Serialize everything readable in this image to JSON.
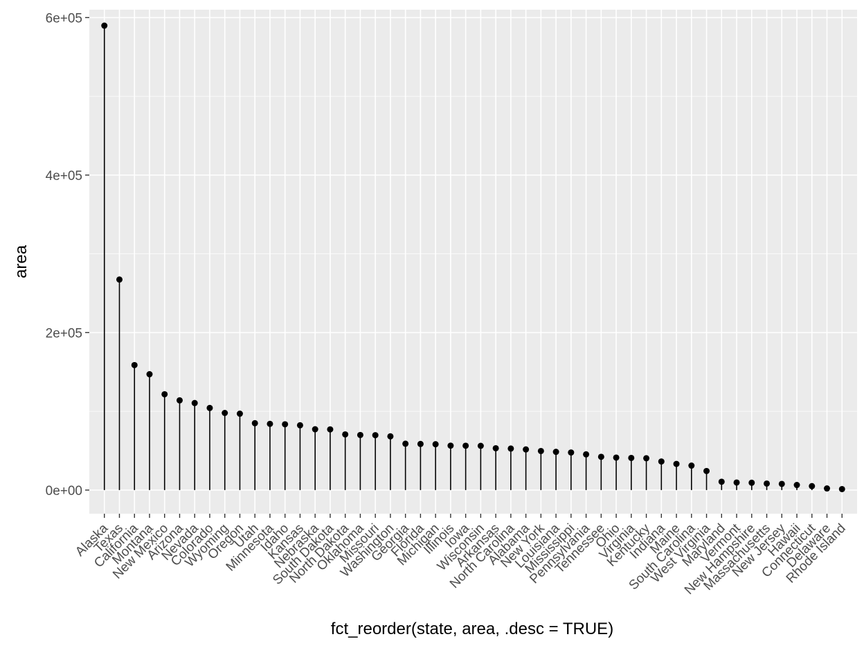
{
  "chart_data": {
    "type": "lollipop",
    "xlabel": "fct_reorder(state, area, .desc = TRUE)",
    "ylabel": "area",
    "ylim": [
      -30000,
      610000
    ],
    "yticks": [
      0,
      200000,
      400000,
      600000
    ],
    "ytick_labels": [
      "0e+00",
      "2e+05",
      "4e+05",
      "6e+05"
    ],
    "grid": true,
    "x_tick_rotation_deg": 45,
    "colors": {
      "panel_bg": "#ebebeb",
      "grid_major": "#ffffff",
      "mark": "#000000",
      "tick_text": "#4d4d4d"
    },
    "categories": [
      "Alaska",
      "Texas",
      "California",
      "Montana",
      "New Mexico",
      "Arizona",
      "Nevada",
      "Colorado",
      "Wyoming",
      "Oregon",
      "Utah",
      "Minnesota",
      "Idaho",
      "Kansas",
      "Nebraska",
      "South Dakota",
      "North Dakota",
      "Oklahoma",
      "Missouri",
      "Washington",
      "Georgia",
      "Florida",
      "Michigan",
      "Illinois",
      "Iowa",
      "Wisconsin",
      "Arkansas",
      "North Carolina",
      "Alabama",
      "New York",
      "Louisiana",
      "Mississippi",
      "Pennsylvania",
      "Tennessee",
      "Ohio",
      "Virginia",
      "Kentucky",
      "Indiana",
      "Maine",
      "South Carolina",
      "West Virginia",
      "Maryland",
      "Vermont",
      "New Hampshire",
      "Massachusetts",
      "New Jersey",
      "Hawaii",
      "Connecticut",
      "Delaware",
      "Rhode Island"
    ],
    "values": [
      589757,
      267339,
      158693,
      147138,
      121666,
      113909,
      110540,
      104247,
      97914,
      96981,
      84916,
      84068,
      83557,
      82264,
      77227,
      77047,
      70665,
      69919,
      69686,
      68192,
      58876,
      58560,
      58216,
      56400,
      56290,
      56154,
      53104,
      52712,
      51609,
      49576,
      48523,
      47716,
      45333,
      42244,
      41222,
      40815,
      40395,
      36291,
      33215,
      31055,
      24181,
      10577,
      9609,
      9304,
      8257,
      7836,
      6450,
      5009,
      2057,
      1214
    ]
  }
}
